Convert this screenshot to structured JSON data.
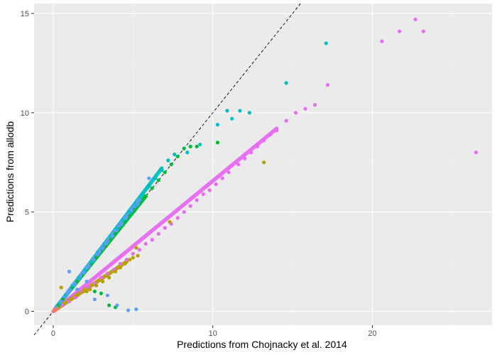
{
  "chart_data": {
    "type": "scatter",
    "title": "",
    "xlabel": "Predictions from Chojnacky et al. 2014",
    "ylabel": "Predictions from allodb",
    "xlim": [
      -1.2,
      27.5
    ],
    "ylim": [
      -0.7,
      15.5
    ],
    "xticks": [
      0,
      10,
      20
    ],
    "yticks": [
      0,
      5,
      10,
      15
    ],
    "x_tick_labels": [
      "0",
      "10",
      "20"
    ],
    "y_tick_labels": [
      "0",
      "5",
      "10",
      "15"
    ],
    "grid": true,
    "legend": "none",
    "reference_line": {
      "slope": 1,
      "intercept": 0,
      "style": "dashed",
      "color": "#000000"
    },
    "colors": {
      "panel": "#ebebeb",
      "grid_major": "#ffffff",
      "grid_minor": "#f2f2f2",
      "red": "#f8766d",
      "olive": "#b79f00",
      "green": "#00ba38",
      "teal": "#00bfc4",
      "blue": "#619cff",
      "pink": "#e76bf3"
    },
    "series": [
      {
        "color": "#e76bf3",
        "points": [
          [
            0.2,
            0.1
          ],
          [
            0.6,
            0.3
          ],
          [
            1.0,
            0.5
          ],
          [
            1.4,
            0.7
          ],
          [
            1.8,
            1.0
          ],
          [
            2.2,
            1.2
          ],
          [
            2.6,
            1.4
          ],
          [
            3.0,
            1.7
          ],
          [
            3.4,
            1.9
          ],
          [
            3.8,
            2.1
          ],
          [
            4.2,
            2.4
          ],
          [
            4.6,
            2.6
          ],
          [
            5.0,
            2.9
          ],
          [
            5.4,
            3.1
          ],
          [
            5.8,
            3.4
          ],
          [
            6.2,
            3.6
          ],
          [
            6.6,
            3.9
          ],
          [
            7.0,
            4.2
          ],
          [
            7.4,
            4.4
          ],
          [
            7.8,
            4.7
          ],
          [
            8.2,
            5.0
          ],
          [
            8.6,
            5.3
          ],
          [
            9.0,
            5.6
          ],
          [
            9.4,
            5.9
          ],
          [
            9.8,
            6.1
          ],
          [
            10.2,
            6.4
          ],
          [
            10.6,
            6.7
          ],
          [
            11.0,
            7.0
          ],
          [
            11.6,
            7.4
          ],
          [
            12.0,
            7.7
          ],
          [
            12.4,
            8.0
          ],
          [
            12.8,
            8.3
          ],
          [
            13.2,
            8.6
          ],
          [
            13.6,
            8.9
          ],
          [
            14.0,
            9.1
          ],
          [
            14.6,
            9.6
          ],
          [
            15.2,
            10.0
          ],
          [
            15.8,
            10.2
          ],
          [
            16.4,
            10.4
          ],
          [
            20.6,
            13.6
          ],
          [
            21.7,
            14.1
          ],
          [
            22.7,
            14.7
          ],
          [
            23.2,
            14.1
          ],
          [
            17.2,
            11.4
          ],
          [
            26.5,
            8.0
          ]
        ]
      },
      {
        "color": "#b79f00",
        "points": [
          [
            0.3,
            0.2
          ],
          [
            0.7,
            0.4
          ],
          [
            1.1,
            0.6
          ],
          [
            1.5,
            0.8
          ],
          [
            1.9,
            1.0
          ],
          [
            2.3,
            1.1
          ],
          [
            2.7,
            1.3
          ],
          [
            3.1,
            1.5
          ],
          [
            3.5,
            1.7
          ],
          [
            3.9,
            2.0
          ],
          [
            4.2,
            2.2
          ],
          [
            4.5,
            2.4
          ],
          [
            4.8,
            2.6
          ],
          [
            5.0,
            2.7
          ],
          [
            5.3,
            2.8
          ],
          [
            0.5,
            1.2
          ],
          [
            5.2,
            3.2
          ],
          [
            7.3,
            4.5
          ],
          [
            13.2,
            7.5
          ],
          [
            2.1,
            1.0
          ]
        ]
      },
      {
        "color": "#00ba38",
        "points": [
          [
            0.3,
            0.3
          ],
          [
            0.6,
            0.6
          ],
          [
            0.9,
            0.9
          ],
          [
            1.2,
            1.2
          ],
          [
            1.5,
            1.5
          ],
          [
            1.8,
            1.8
          ],
          [
            2.1,
            2.1
          ],
          [
            2.4,
            2.4
          ],
          [
            2.7,
            2.7
          ],
          [
            3.0,
            3.0
          ],
          [
            3.3,
            3.3
          ],
          [
            3.6,
            3.6
          ],
          [
            3.9,
            3.9
          ],
          [
            4.2,
            4.2
          ],
          [
            4.5,
            4.5
          ],
          [
            4.8,
            4.8
          ],
          [
            5.1,
            5.1
          ],
          [
            5.4,
            5.4
          ],
          [
            5.8,
            5.8
          ],
          [
            6.2,
            6.2
          ],
          [
            6.6,
            6.6
          ],
          [
            7.0,
            7.0
          ],
          [
            7.4,
            7.4
          ],
          [
            7.8,
            7.8
          ],
          [
            8.2,
            8.2
          ],
          [
            8.6,
            8.3
          ],
          [
            9.0,
            8.3
          ],
          [
            10.3,
            8.5
          ],
          [
            3.5,
            0.3
          ],
          [
            3.9,
            0.2
          ],
          [
            2.6,
            1.0
          ],
          [
            3.0,
            0.9
          ]
        ]
      },
      {
        "color": "#00bfc4",
        "points": [
          [
            0.4,
            0.4
          ],
          [
            0.8,
            0.8
          ],
          [
            1.2,
            1.3
          ],
          [
            1.6,
            1.7
          ],
          [
            2.0,
            2.1
          ],
          [
            2.4,
            2.5
          ],
          [
            2.8,
            3.0
          ],
          [
            3.2,
            3.4
          ],
          [
            3.6,
            3.8
          ],
          [
            4.0,
            4.2
          ],
          [
            4.4,
            4.6
          ],
          [
            4.8,
            5.0
          ],
          [
            5.2,
            5.4
          ],
          [
            5.6,
            5.9
          ],
          [
            6.0,
            6.3
          ],
          [
            6.4,
            6.7
          ],
          [
            6.8,
            7.1
          ],
          [
            7.2,
            7.6
          ],
          [
            7.6,
            7.9
          ],
          [
            8.4,
            8.0
          ],
          [
            9.2,
            8.4
          ],
          [
            10.3,
            9.4
          ],
          [
            10.9,
            10.1
          ],
          [
            11.2,
            9.7
          ],
          [
            11.7,
            10.1
          ],
          [
            12.3,
            10.0
          ],
          [
            14.6,
            11.5
          ],
          [
            17.1,
            13.5
          ]
        ]
      },
      {
        "color": "#619cff",
        "points": [
          [
            0.2,
            0.2
          ],
          [
            0.5,
            0.5
          ],
          [
            0.9,
            0.9
          ],
          [
            1.3,
            1.4
          ],
          [
            1.7,
            1.8
          ],
          [
            2.1,
            2.2
          ],
          [
            2.5,
            2.6
          ],
          [
            2.9,
            3.0
          ],
          [
            3.3,
            3.4
          ],
          [
            3.7,
            3.8
          ],
          [
            4.1,
            4.3
          ],
          [
            4.5,
            4.7
          ],
          [
            4.9,
            5.1
          ],
          [
            5.3,
            5.4
          ],
          [
            6.0,
            6.7
          ],
          [
            1.0,
            2.0
          ],
          [
            2.1,
            1.5
          ],
          [
            3.4,
            0.8
          ],
          [
            4.0,
            0.3
          ],
          [
            4.7,
            0.05
          ],
          [
            5.2,
            0.1
          ],
          [
            2.6,
            0.6
          ],
          [
            1.5,
            1.1
          ]
        ]
      },
      {
        "color": "#f8766d",
        "points": [
          [
            0.0,
            0.0
          ],
          [
            0.1,
            0.05
          ],
          [
            0.2,
            0.1
          ],
          [
            0.1,
            0.1
          ],
          [
            0.05,
            0.02
          ]
        ]
      }
    ],
    "dense_bands": [
      {
        "color": "#00ba38",
        "from": [
          0.1,
          0.1
        ],
        "to": [
          5.8,
          5.8
        ]
      },
      {
        "color": "#00bfc4",
        "from": [
          0.2,
          0.2
        ],
        "to": [
          6.8,
          7.2
        ]
      },
      {
        "color": "#619cff",
        "from": [
          0.1,
          0.1
        ],
        "to": [
          5.4,
          5.6
        ]
      },
      {
        "color": "#e76bf3",
        "from": [
          0.1,
          0.05
        ],
        "to": [
          14.0,
          9.2
        ]
      },
      {
        "color": "#b79f00",
        "from": [
          0.1,
          0.05
        ],
        "to": [
          4.6,
          2.5
        ]
      }
    ]
  }
}
